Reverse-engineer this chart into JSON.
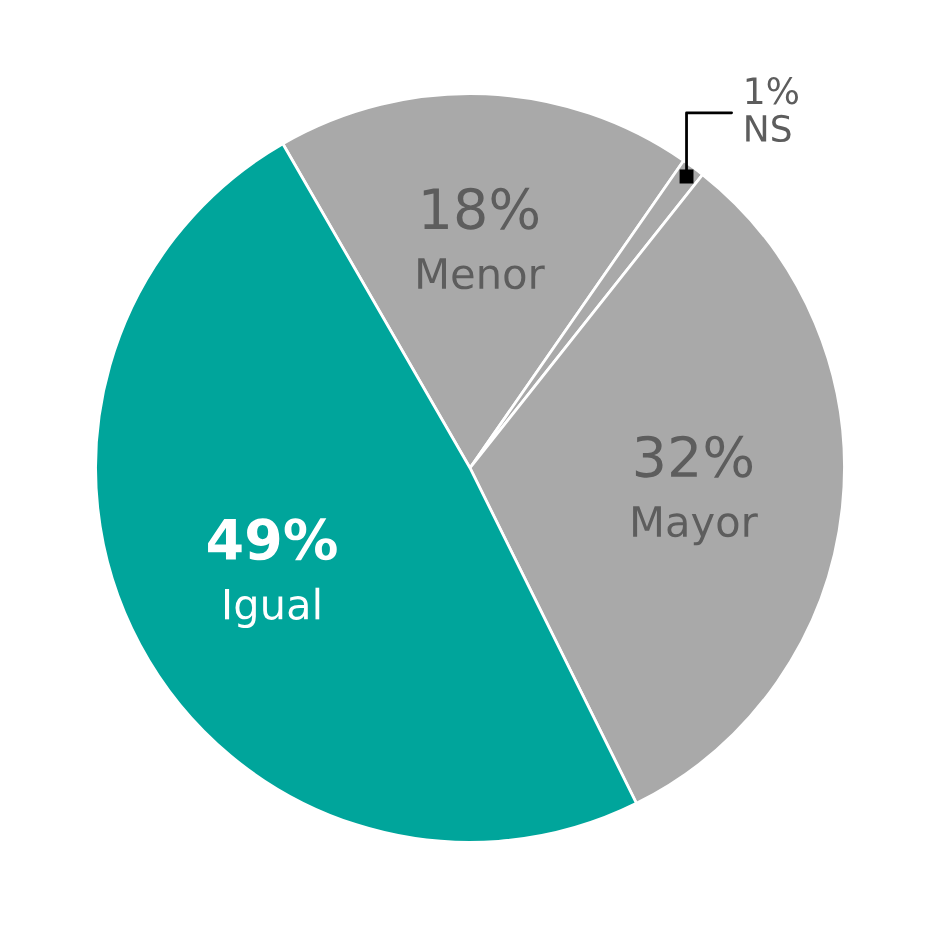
{
  "chart_data": {
    "type": "pie",
    "categories": [
      "Menor",
      "NS",
      "Mayor",
      "Igual"
    ],
    "values": [
      18,
      1,
      32,
      49
    ],
    "value_labels": [
      "18%",
      "1%",
      "32%",
      "49%"
    ],
    "colors": [
      "#a9a9a9",
      "#a9a9a9",
      "#a9a9a9",
      "#00a59b"
    ],
    "legend": false
  }
}
